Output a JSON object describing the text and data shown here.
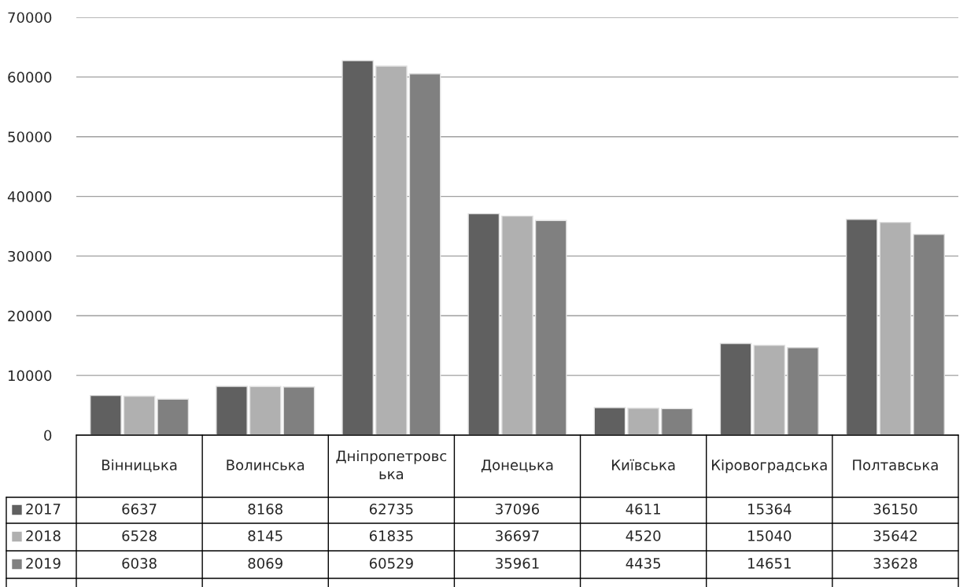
{
  "chart_data": {
    "type": "bar",
    "categories": [
      "Вінницька",
      "Волинська",
      "Дніпропетровська",
      "Донецька",
      "Київська",
      "Кіровоградська",
      "Полтавська"
    ],
    "series": [
      {
        "name": "2017",
        "color": "#606060",
        "values": [
          6637,
          8168,
          62735,
          37096,
          4611,
          15364,
          36150
        ]
      },
      {
        "name": "2018",
        "color": "#b0b0b0",
        "values": [
          6528,
          8145,
          61835,
          36697,
          4520,
          15040,
          35642
        ]
      },
      {
        "name": "2019",
        "color": "#808080",
        "values": [
          6038,
          8069,
          60529,
          35961,
          4435,
          14651,
          33628
        ]
      }
    ],
    "ylim": [
      0,
      70000
    ],
    "yticks": [
      0,
      10000,
      20000,
      30000,
      40000,
      50000,
      60000,
      70000
    ],
    "grid": "y",
    "data_labels": true,
    "legend": "bottom"
  }
}
